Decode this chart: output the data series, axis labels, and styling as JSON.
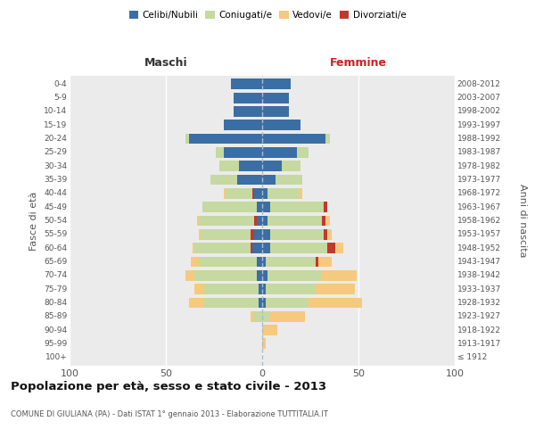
{
  "age_groups": [
    "100+",
    "95-99",
    "90-94",
    "85-89",
    "80-84",
    "75-79",
    "70-74",
    "65-69",
    "60-64",
    "55-59",
    "50-54",
    "45-49",
    "40-44",
    "35-39",
    "30-34",
    "25-29",
    "20-24",
    "15-19",
    "10-14",
    "5-9",
    "0-4"
  ],
  "birth_years": [
    "≤ 1912",
    "1913-1917",
    "1918-1922",
    "1923-1927",
    "1928-1932",
    "1933-1937",
    "1938-1942",
    "1943-1947",
    "1948-1952",
    "1953-1957",
    "1958-1962",
    "1963-1967",
    "1968-1972",
    "1973-1977",
    "1978-1982",
    "1983-1987",
    "1988-1992",
    "1993-1997",
    "1998-2002",
    "2003-2007",
    "2008-2012"
  ],
  "maschi": {
    "celibi": [
      0,
      0,
      0,
      0,
      2,
      2,
      3,
      3,
      5,
      4,
      3,
      3,
      4,
      13,
      12,
      20,
      38,
      20,
      15,
      15,
      16
    ],
    "coniugati": [
      0,
      0,
      0,
      4,
      28,
      28,
      32,
      30,
      30,
      28,
      30,
      28,
      15,
      14,
      10,
      4,
      2,
      0,
      0,
      0,
      0
    ],
    "vedovi": [
      0,
      0,
      0,
      2,
      8,
      5,
      5,
      4,
      1,
      1,
      1,
      0,
      1,
      0,
      0,
      0,
      0,
      0,
      0,
      0,
      0
    ],
    "divorziati": [
      0,
      0,
      0,
      0,
      0,
      0,
      0,
      0,
      1,
      2,
      1,
      0,
      1,
      0,
      0,
      0,
      0,
      0,
      0,
      0,
      0
    ]
  },
  "femmine": {
    "nubili": [
      0,
      0,
      0,
      0,
      2,
      2,
      3,
      2,
      4,
      4,
      3,
      4,
      3,
      7,
      10,
      18,
      33,
      20,
      14,
      14,
      15
    ],
    "coniugate": [
      0,
      0,
      0,
      4,
      22,
      26,
      28,
      26,
      30,
      28,
      28,
      28,
      16,
      14,
      10,
      6,
      2,
      0,
      0,
      0,
      0
    ],
    "vedove": [
      0,
      2,
      8,
      18,
      28,
      20,
      18,
      8,
      8,
      4,
      4,
      2,
      2,
      0,
      0,
      0,
      0,
      0,
      0,
      0,
      0
    ],
    "divorziate": [
      0,
      0,
      0,
      0,
      0,
      0,
      0,
      1,
      4,
      2,
      2,
      2,
      0,
      0,
      0,
      0,
      0,
      0,
      0,
      0,
      0
    ]
  },
  "colors": {
    "celibi_nubili": "#3a6ea5",
    "coniugati_e": "#c5d9a0",
    "vedovi_e": "#f5c97e",
    "divorziati_e": "#c0392b"
  },
  "title": "Popolazione per età, sesso e stato civile - 2013",
  "subtitle": "COMUNE DI GIULIANA (PA) - Dati ISTAT 1° gennaio 2013 - Elaborazione TUTTITALIA.IT",
  "header_maschi": "Maschi",
  "header_femmine": "Femmine",
  "ylabel_left": "Fasce di età",
  "ylabel_right": "Anni di nascita",
  "xlim": 100,
  "bg_color": "#ebebeb",
  "legend_labels": [
    "Celibi/Nubili",
    "Coniugati/e",
    "Vedovi/e",
    "Divorziati/e"
  ]
}
